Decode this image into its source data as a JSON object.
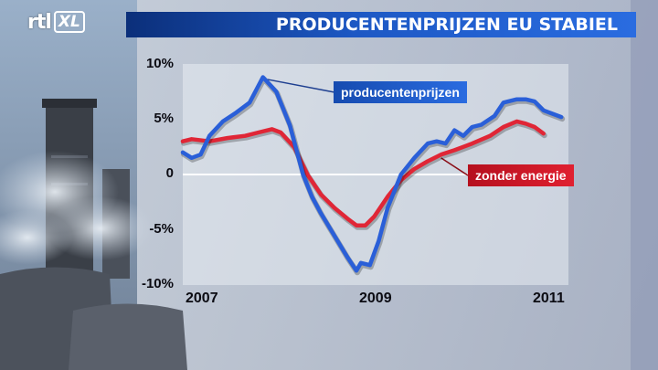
{
  "brand": {
    "logo_left": "rtl",
    "logo_right": "XL"
  },
  "header": {
    "title": "PRODUCENTENPRIJZEN EU STABIEL"
  },
  "chart_data": {
    "type": "line",
    "title": "PRODUCENTENPRIJZEN EU STABIEL",
    "xlabel": "",
    "ylabel": "",
    "xlim": [
      2007.0,
      2011.33
    ],
    "ylim": [
      -10,
      10
    ],
    "x_tick_labels": [
      {
        "value": 2007,
        "label": "2007"
      },
      {
        "value": 2009,
        "label": "2009"
      },
      {
        "value": 2011,
        "label": "2011"
      }
    ],
    "y_tick_labels": [
      {
        "value": 10,
        "label": "10%"
      },
      {
        "value": 5,
        "label": "5%"
      },
      {
        "value": 0,
        "label": "0"
      },
      {
        "value": -5,
        "label": "-5%"
      },
      {
        "value": -10,
        "label": "-10%"
      }
    ],
    "zero_line": true,
    "series": [
      {
        "name": "producentenprijzen",
        "color": "#2a5fd8",
        "x": [
          2007.0,
          2007.1,
          2007.2,
          2007.3,
          2007.45,
          2007.6,
          2007.75,
          2007.9,
          2008.05,
          2008.2,
          2008.35,
          2008.45,
          2008.55,
          2008.7,
          2008.85,
          2008.95,
          2009.0,
          2009.1,
          2009.2,
          2009.3,
          2009.45,
          2009.6,
          2009.75,
          2009.85,
          2009.95,
          2010.05,
          2010.15,
          2010.25,
          2010.35,
          2010.5,
          2010.6,
          2010.75,
          2010.85,
          2010.95,
          2011.05,
          2011.15,
          2011.25
        ],
        "y": [
          2.0,
          1.5,
          1.8,
          3.5,
          4.8,
          5.6,
          6.5,
          8.8,
          7.5,
          4.5,
          0.0,
          -2.0,
          -3.5,
          -5.5,
          -7.5,
          -8.7,
          -8.0,
          -8.2,
          -6.0,
          -3.0,
          0.0,
          1.5,
          2.8,
          3.0,
          2.8,
          4.0,
          3.5,
          4.3,
          4.5,
          5.3,
          6.5,
          6.8,
          6.8,
          6.6,
          5.8,
          5.5,
          5.2
        ]
      },
      {
        "name": "zonder energie",
        "color": "#e02636",
        "x": [
          2007.0,
          2007.1,
          2007.3,
          2007.5,
          2007.7,
          2007.85,
          2008.0,
          2008.1,
          2008.25,
          2008.4,
          2008.55,
          2008.7,
          2008.85,
          2008.95,
          2009.05,
          2009.15,
          2009.3,
          2009.45,
          2009.6,
          2009.75,
          2009.9,
          2010.05,
          2010.25,
          2010.45,
          2010.6,
          2010.75,
          2010.85,
          2010.95,
          2011.05
        ],
        "y": [
          3.0,
          3.2,
          3.0,
          3.3,
          3.5,
          3.8,
          4.1,
          3.8,
          2.5,
          0.0,
          -1.8,
          -3.0,
          -4.0,
          -4.6,
          -4.6,
          -3.8,
          -2.0,
          -0.5,
          0.5,
          1.2,
          1.8,
          2.2,
          2.8,
          3.5,
          4.3,
          4.8,
          4.6,
          4.3,
          3.7
        ]
      }
    ]
  }
}
